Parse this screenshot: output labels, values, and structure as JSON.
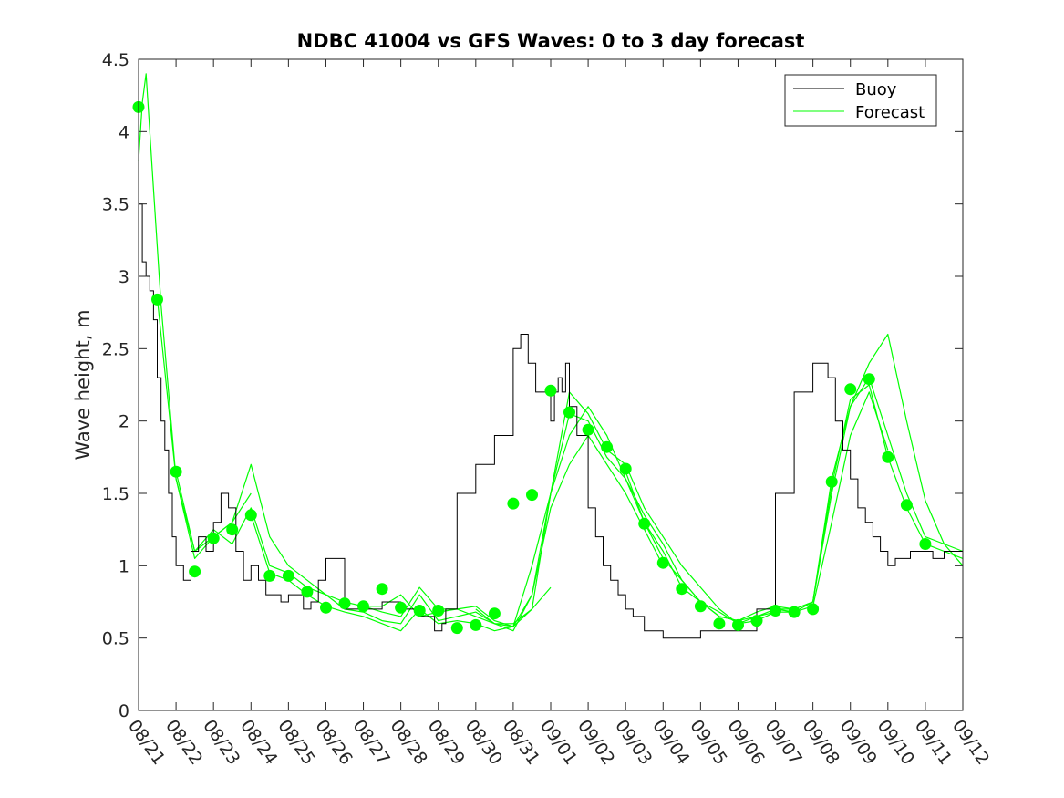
{
  "chart_data": {
    "type": "line",
    "title": "NDBC 41004 vs GFS Waves: 0 to 3 day forecast",
    "xlabel": "",
    "ylabel": "Wave height, m",
    "ylim": [
      0,
      4.5
    ],
    "xlim": [
      0,
      22
    ],
    "x_tick_labels": [
      "08/21",
      "08/22",
      "08/23",
      "08/24",
      "08/25",
      "08/26",
      "08/27",
      "08/28",
      "08/29",
      "08/30",
      "08/31",
      "09/01",
      "09/02",
      "09/03",
      "09/04",
      "09/05",
      "09/06",
      "09/07",
      "09/08",
      "09/09",
      "09/10",
      "09/11",
      "09/12"
    ],
    "y_ticks": [
      0,
      0.5,
      1,
      1.5,
      2,
      2.5,
      3,
      3.5,
      4,
      4.5
    ],
    "y_tick_labels": [
      "0",
      "0.5",
      "1",
      "1.5",
      "2",
      "2.5",
      "3",
      "3.5",
      "4",
      "4.5"
    ],
    "legend": {
      "position": "top-right",
      "entries": [
        "Buoy",
        "Forecast"
      ]
    },
    "colors": {
      "buoy": "#000000",
      "forecast": "#00ff00",
      "axis": "#262626"
    },
    "series": [
      {
        "name": "Buoy",
        "x": [
          0,
          0.1,
          0.2,
          0.3,
          0.4,
          0.5,
          0.6,
          0.7,
          0.8,
          0.9,
          1.0,
          1.2,
          1.4,
          1.6,
          1.8,
          2.0,
          2.2,
          2.4,
          2.6,
          2.8,
          3.0,
          3.2,
          3.4,
          3.6,
          3.8,
          4.0,
          4.2,
          4.4,
          4.6,
          4.8,
          5.0,
          5.5,
          6.0,
          6.5,
          7.0,
          7.5,
          7.9,
          8.0,
          8.1,
          8.2,
          8.5,
          9.0,
          9.5,
          10.0,
          10.2,
          10.4,
          10.6,
          10.8,
          11.0,
          11.1,
          11.2,
          11.3,
          11.4,
          11.5,
          11.7,
          12.0,
          12.2,
          12.4,
          12.6,
          12.8,
          13.0,
          13.2,
          13.5,
          14.0,
          14.5,
          15.0,
          15.5,
          16.0,
          16.5,
          17.0,
          17.5,
          18.0,
          18.2,
          18.4,
          18.6,
          18.8,
          19.0,
          19.2,
          19.4,
          19.6,
          19.8,
          20.0,
          20.2,
          20.4,
          20.6,
          20.8,
          21.0,
          21.2,
          21.5,
          22.0
        ],
        "y": [
          3.5,
          3.1,
          3.0,
          2.9,
          2.7,
          2.3,
          2.0,
          1.8,
          1.5,
          1.2,
          1.0,
          0.9,
          1.1,
          1.2,
          1.1,
          1.3,
          1.5,
          1.4,
          1.1,
          0.9,
          1.0,
          0.9,
          0.8,
          0.8,
          0.75,
          0.8,
          0.8,
          0.7,
          0.75,
          0.9,
          1.05,
          0.7,
          0.7,
          0.75,
          0.7,
          0.65,
          0.55,
          0.55,
          0.6,
          0.7,
          1.5,
          1.7,
          1.9,
          2.5,
          2.6,
          2.4,
          2.2,
          2.2,
          2.0,
          2.2,
          2.3,
          2.2,
          2.4,
          2.1,
          1.9,
          1.4,
          1.2,
          1.0,
          0.9,
          0.8,
          0.7,
          0.65,
          0.55,
          0.5,
          0.5,
          0.55,
          0.55,
          0.55,
          0.7,
          1.5,
          2.2,
          2.4,
          2.4,
          2.3,
          2.0,
          1.8,
          1.6,
          1.4,
          1.3,
          1.2,
          1.1,
          1.0,
          1.05,
          1.05,
          1.1,
          1.1,
          1.1,
          1.05,
          1.1,
          1.05
        ]
      },
      {
        "name": "Forecast",
        "lines": [
          {
            "x": [
              0,
              0.1,
              0.2,
              0.4,
              0.6,
              0.8,
              1.0,
              1.5,
              2.0,
              2.5,
              3.0
            ],
            "y": [
              3.8,
              4.2,
              4.4,
              3.6,
              2.8,
              2.2,
              1.6,
              1.05,
              1.2,
              1.3,
              1.5
            ]
          },
          {
            "x": [
              0.5,
              1.0,
              1.5,
              2.0,
              2.5,
              3.0,
              3.5,
              4.0,
              4.5,
              5.0,
              5.5,
              6.0,
              6.5,
              7.0,
              7.5,
              8.0,
              8.5,
              9.0,
              9.5,
              10.0,
              10.5,
              11.0
            ],
            "y": [
              2.85,
              1.6,
              1.1,
              1.2,
              1.3,
              1.7,
              1.2,
              1.0,
              0.9,
              0.8,
              0.75,
              0.72,
              0.72,
              0.8,
              0.65,
              0.68,
              0.7,
              0.65,
              0.6,
              0.6,
              0.7,
              0.85
            ]
          },
          {
            "x": [
              1.0,
              1.5,
              2.0,
              2.5,
              3.0,
              3.5,
              4.0,
              4.5,
              5.0,
              5.5,
              6.0,
              6.5,
              7.0,
              7.5,
              8.0,
              8.5,
              9.0,
              9.5,
              10.0,
              10.5,
              11.0,
              11.5,
              12.0,
              13.0,
              14.0
            ],
            "y": [
              1.65,
              1.1,
              1.25,
              1.15,
              1.4,
              1.0,
              0.95,
              0.85,
              0.8,
              0.7,
              0.68,
              0.62,
              0.6,
              0.8,
              0.62,
              0.65,
              0.68,
              0.6,
              0.55,
              0.8,
              1.4,
              1.7,
              1.9,
              1.5,
              1.0
            ]
          },
          {
            "x": [
              3.0,
              3.5,
              4.0,
              4.5,
              5.0,
              5.5,
              6.0,
              6.5,
              7.0,
              7.5,
              8.0,
              8.5,
              9.0,
              9.5,
              10.0,
              10.5,
              11.0,
              11.5,
              12.0,
              12.5,
              13.0,
              13.5,
              14.0,
              14.5,
              15.0,
              15.5,
              16.0,
              16.5,
              17.0
            ],
            "y": [
              1.35,
              0.95,
              0.9,
              0.8,
              0.72,
              0.68,
              0.65,
              0.6,
              0.55,
              0.7,
              0.6,
              0.62,
              0.6,
              0.55,
              0.58,
              1.0,
              1.5,
              2.2,
              2.05,
              1.8,
              1.7,
              1.4,
              1.2,
              1.0,
              0.85,
              0.7,
              0.6,
              0.62,
              0.68
            ]
          },
          {
            "x": [
              6.0,
              6.5,
              7.0,
              7.5,
              8.0,
              8.5,
              9.0,
              9.5,
              10.0,
              10.5,
              11.0,
              11.5,
              12.0,
              12.5,
              13.0,
              13.5,
              14.0,
              14.5,
              15.0,
              15.5,
              16.0,
              16.5,
              17.0,
              17.5,
              18.0,
              18.5,
              19.0,
              19.5,
              20.0
            ],
            "y": [
              0.72,
              0.68,
              0.65,
              0.85,
              0.7,
              0.7,
              0.72,
              0.62,
              0.58,
              0.7,
              1.5,
              1.9,
              2.1,
              1.9,
              1.6,
              1.3,
              1.05,
              0.9,
              0.75,
              0.65,
              0.62,
              0.65,
              0.68,
              0.68,
              0.72,
              1.3,
              1.9,
              2.2,
              1.8
            ]
          },
          {
            "x": [
              9.0,
              9.5,
              10.0,
              10.5,
              11.0,
              11.5,
              12.0,
              12.5,
              13.0,
              13.5,
              14.0,
              14.5,
              15.0,
              15.5,
              16.0,
              16.5,
              17.0,
              17.5,
              18.0,
              18.5,
              19.0,
              19.5,
              20.0,
              20.5,
              21.0,
              21.5,
              22.0
            ],
            "y": [
              0.7,
              0.6,
              0.58,
              0.8,
              1.5,
              2.05,
              2.0,
              1.75,
              1.6,
              1.35,
              1.15,
              0.9,
              0.75,
              0.68,
              0.6,
              0.65,
              0.7,
              0.7,
              0.75,
              1.6,
              2.1,
              2.4,
              2.6,
              2.0,
              1.45,
              1.15,
              1.1
            ]
          },
          {
            "x": [
              13.0,
              13.5,
              14.0,
              14.5,
              15.0,
              15.5,
              16.0,
              16.5,
              17.0,
              17.5,
              18.0,
              18.5,
              19.0,
              19.5,
              20.0,
              20.5,
              21.0,
              21.5,
              22.0
            ],
            "y": [
              1.65,
              1.3,
              1.1,
              0.85,
              0.75,
              0.65,
              0.62,
              0.68,
              0.72,
              0.7,
              0.75,
              1.5,
              2.1,
              2.3,
              1.9,
              1.5,
              1.2,
              1.15,
              1.0
            ]
          },
          {
            "x": [
              17.0,
              17.5,
              18.0,
              18.5,
              19.0,
              19.5,
              20.0,
              20.5,
              21.0,
              21.5,
              22.0
            ],
            "y": [
              0.7,
              0.68,
              0.75,
              1.55,
              2.15,
              2.25,
              1.75,
              1.4,
              1.15,
              1.1,
              1.05
            ]
          }
        ],
        "markers": {
          "x": [
            0,
            0.5,
            1,
            1.5,
            2,
            2.5,
            3,
            3.5,
            4,
            4.5,
            5,
            5.5,
            6,
            6.5,
            7,
            7.5,
            8,
            8.5,
            9,
            9.5,
            10,
            10.5,
            11,
            11.5,
            12,
            12.5,
            13,
            13.5,
            14,
            14.5,
            15,
            15.5,
            16,
            16.5,
            17,
            17.5,
            18,
            18.5,
            19,
            19.5,
            20,
            20.5,
            21
          ],
          "y": [
            4.17,
            2.84,
            1.65,
            0.96,
            1.19,
            1.25,
            1.35,
            0.93,
            0.93,
            0.82,
            0.71,
            0.74,
            0.72,
            0.84,
            0.71,
            0.69,
            0.69,
            0.57,
            0.59,
            0.67,
            1.43,
            1.49,
            2.21,
            2.06,
            1.94,
            1.82,
            1.67,
            1.29,
            1.02,
            0.84,
            0.72,
            0.6,
            0.59,
            0.62,
            0.69,
            0.68,
            0.7,
            1.58,
            2.22,
            2.29,
            1.75,
            1.42,
            1.15
          ]
        }
      }
    ]
  }
}
